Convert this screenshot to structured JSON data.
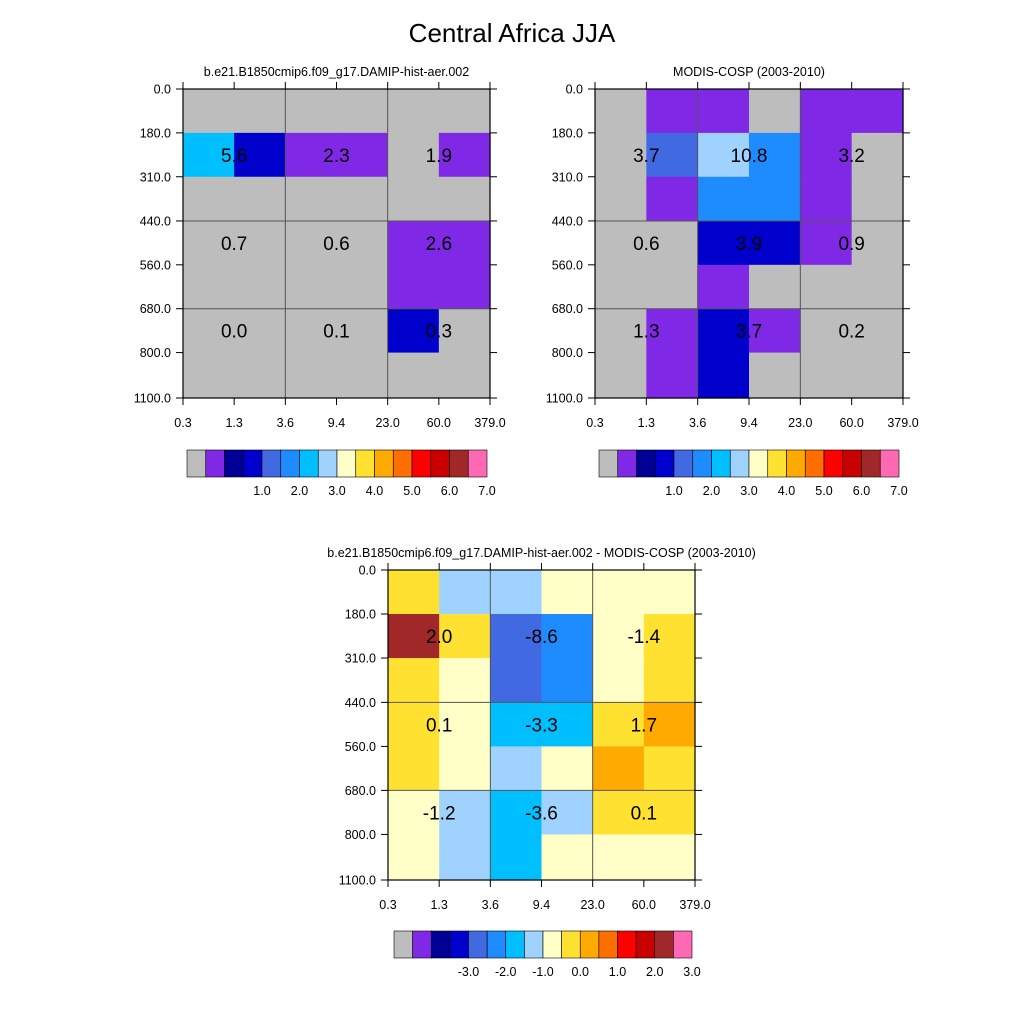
{
  "figure": {
    "title": "Central Africa JJA"
  },
  "chart_data": [
    {
      "type": "heatmap",
      "id": "model",
      "title": "b.e21.B1850cmip6.f09_g17.DAMIP-hist-aer.002",
      "x_ticks": [
        "0.3",
        "1.3",
        "3.6",
        "9.4",
        "23.0",
        "60.0",
        "379.0"
      ],
      "y_ticks": [
        "0.0",
        "180.0",
        "310.0",
        "440.0",
        "560.0",
        "680.0",
        "800.0",
        "1100.0"
      ],
      "cells": [
        [
          0,
          0,
          0,
          0,
          0,
          0
        ],
        [
          6,
          3,
          1,
          1,
          0,
          1
        ],
        [
          0,
          0,
          0,
          0,
          0,
          0
        ],
        [
          0,
          0,
          0,
          0,
          1,
          1
        ],
        [
          0,
          0,
          0,
          0,
          1,
          1
        ],
        [
          0,
          0,
          0,
          0,
          3,
          0
        ],
        [
          0,
          0,
          0,
          0,
          0,
          0
        ]
      ],
      "totals": [
        [
          "5.6",
          "2.3",
          "1.9"
        ],
        [
          "0.7",
          "0.6",
          "2.6"
        ],
        [
          "0.0",
          "0.1",
          "0.3"
        ]
      ],
      "colorbar": {
        "ticks": [
          "1.0",
          "2.0",
          "3.0",
          "4.0",
          "5.0",
          "6.0",
          "7.0"
        ]
      }
    },
    {
      "type": "heatmap",
      "id": "obs",
      "title": "MODIS-COSP (2003-2010)",
      "x_ticks": [
        "0.3",
        "1.3",
        "3.6",
        "9.4",
        "23.0",
        "60.0",
        "379.0"
      ],
      "y_ticks": [
        "0.0",
        "180.0",
        "310.0",
        "440.0",
        "560.0",
        "680.0",
        "800.0",
        "1100.0"
      ],
      "cells": [
        [
          0,
          1,
          1,
          0,
          1,
          1
        ],
        [
          0,
          4,
          7,
          5,
          1,
          0
        ],
        [
          0,
          1,
          5,
          5,
          1,
          0
        ],
        [
          0,
          0,
          3,
          3,
          1,
          0
        ],
        [
          0,
          0,
          1,
          0,
          0,
          0
        ],
        [
          0,
          1,
          3,
          1,
          0,
          0
        ],
        [
          0,
          1,
          3,
          0,
          0,
          0
        ]
      ],
      "totals": [
        [
          "3.7",
          "10.8",
          "3.2"
        ],
        [
          "0.6",
          "3.9",
          "0.9"
        ],
        [
          "1.3",
          "3.7",
          "0.2"
        ]
      ],
      "colorbar": {
        "ticks": [
          "1.0",
          "2.0",
          "3.0",
          "4.0",
          "5.0",
          "6.0",
          "7.0"
        ]
      }
    },
    {
      "type": "heatmap",
      "id": "diff",
      "title": "b.e21.B1850cmip6.f09_g17.DAMIP-hist-aer.002 - MODIS-COSP (2003-2010)",
      "x_ticks": [
        "0.3",
        "1.3",
        "3.6",
        "9.4",
        "23.0",
        "60.0",
        "379.0"
      ],
      "y_ticks": [
        "0.0",
        "180.0",
        "310.0",
        "440.0",
        "560.0",
        "680.0",
        "800.0",
        "1100.0"
      ],
      "cells": [
        [
          9,
          7,
          7,
          8,
          8,
          8
        ],
        [
          14,
          9,
          4,
          5,
          8,
          9
        ],
        [
          9,
          8,
          4,
          5,
          8,
          9
        ],
        [
          9,
          8,
          6,
          6,
          9,
          10
        ],
        [
          9,
          8,
          7,
          8,
          10,
          9
        ],
        [
          8,
          7,
          6,
          7,
          9,
          9
        ],
        [
          8,
          7,
          6,
          8,
          8,
          8
        ]
      ],
      "totals": [
        [
          "2.0",
          "-8.6",
          "-1.4"
        ],
        [
          "0.1",
          "-3.3",
          "1.7"
        ],
        [
          "-1.2",
          "-3.6",
          "0.1"
        ]
      ],
      "colorbar": {
        "ticks": [
          "-3.0",
          "-2.0",
          "-1.0",
          "0.0",
          "1.0",
          "2.0",
          "3.0"
        ]
      }
    }
  ],
  "palette": [
    "#bdbdbd",
    "#7f28e6",
    "#000096",
    "#0000cd",
    "#4169e1",
    "#1e8cff",
    "#00bfff",
    "#a0d2ff",
    "#ffffc8",
    "#ffe132",
    "#ffaa00",
    "#ff6e00",
    "#ff0000",
    "#c80000",
    "#a02828",
    "#ff69b4"
  ]
}
